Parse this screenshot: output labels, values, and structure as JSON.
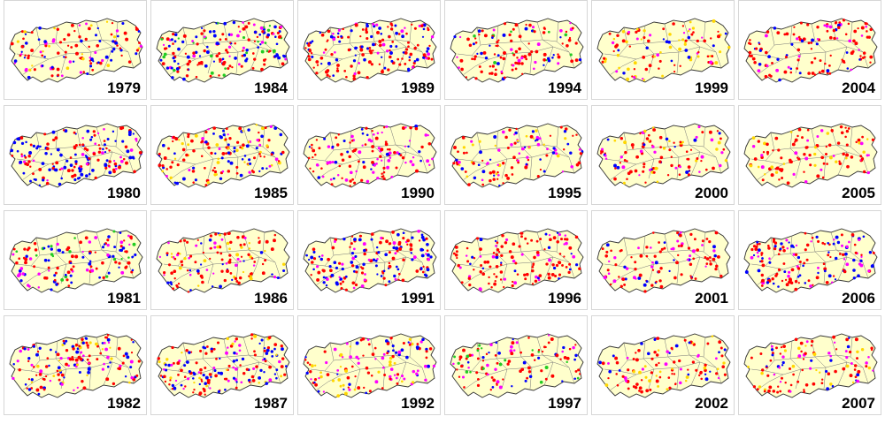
{
  "figure": {
    "map_fill": "#ffffcc",
    "map_outline": "#333333",
    "province_line": "#777777",
    "marker_colors": [
      "#ff0000",
      "#0000ff",
      "#ff00ff",
      "#ffd700",
      "#22cc22"
    ]
  },
  "panels": [
    {
      "year": "1979",
      "palette": [
        0,
        0,
        0,
        1,
        1,
        2,
        3
      ],
      "density": 0.55
    },
    {
      "year": "1984",
      "palette": [
        0,
        0,
        0,
        1,
        1,
        2,
        4
      ],
      "density": 0.9
    },
    {
      "year": "1989",
      "palette": [
        0,
        0,
        0,
        0,
        1,
        1,
        2
      ],
      "density": 0.85
    },
    {
      "year": "1994",
      "palette": [
        0,
        0,
        0,
        0,
        1,
        2,
        4
      ],
      "density": 0.55
    },
    {
      "year": "1999",
      "palette": [
        0,
        0,
        0,
        3,
        3,
        1,
        2
      ],
      "density": 0.4
    },
    {
      "year": "2004",
      "palette": [
        0,
        0,
        0,
        0,
        1,
        2
      ],
      "density": 0.55
    },
    {
      "year": "1980",
      "palette": [
        0,
        0,
        0,
        1,
        1,
        1,
        2
      ],
      "density": 0.85
    },
    {
      "year": "1985",
      "palette": [
        0,
        0,
        0,
        1,
        1,
        2,
        3
      ],
      "density": 0.7
    },
    {
      "year": "1990",
      "palette": [
        0,
        0,
        0,
        1,
        2,
        2
      ],
      "density": 0.6
    },
    {
      "year": "1995",
      "palette": [
        0,
        0,
        0,
        1,
        2,
        3
      ],
      "density": 0.5
    },
    {
      "year": "2000",
      "palette": [
        0,
        0,
        0,
        0,
        1,
        2,
        3
      ],
      "density": 0.45
    },
    {
      "year": "2005",
      "palette": [
        0,
        0,
        0,
        0,
        2,
        3
      ],
      "density": 0.45
    },
    {
      "year": "1981",
      "palette": [
        0,
        0,
        0,
        1,
        1,
        2,
        4
      ],
      "density": 0.6
    },
    {
      "year": "1986",
      "palette": [
        0,
        0,
        0,
        1,
        2,
        3
      ],
      "density": 0.6
    },
    {
      "year": "1991",
      "palette": [
        0,
        0,
        0,
        1,
        1,
        2
      ],
      "density": 0.8
    },
    {
      "year": "1996",
      "palette": [
        0,
        0,
        0,
        0,
        1,
        2
      ],
      "density": 0.6
    },
    {
      "year": "2001",
      "palette": [
        0,
        0,
        0,
        0,
        1,
        2
      ],
      "density": 0.45
    },
    {
      "year": "2006",
      "palette": [
        0,
        0,
        0,
        1,
        1,
        2
      ],
      "density": 0.7
    },
    {
      "year": "1982",
      "palette": [
        0,
        0,
        0,
        1,
        1,
        2,
        3
      ],
      "density": 0.7
    },
    {
      "year": "1987",
      "palette": [
        0,
        0,
        0,
        1,
        1,
        2,
        3
      ],
      "density": 0.8
    },
    {
      "year": "1992",
      "palette": [
        0,
        0,
        2,
        2,
        1,
        3
      ],
      "density": 0.55
    },
    {
      "year": "1997",
      "palette": [
        0,
        0,
        0,
        1,
        2,
        4
      ],
      "density": 0.45
    },
    {
      "year": "2002",
      "palette": [
        0,
        0,
        0,
        3,
        1,
        2
      ],
      "density": 0.45
    },
    {
      "year": "2007",
      "palette": [
        0,
        0,
        0,
        2,
        1,
        3
      ],
      "density": 0.45
    }
  ]
}
